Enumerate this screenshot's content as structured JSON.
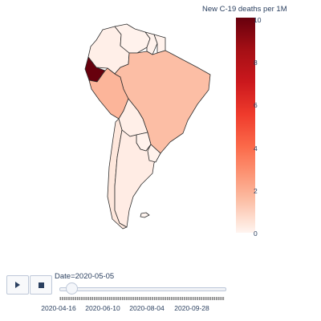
{
  "colorbar": {
    "title": "New C-19 deaths per 1M",
    "ticks": [
      "10",
      "8",
      "6",
      "4",
      "2",
      "0"
    ]
  },
  "map": {
    "countries": [
      {
        "name": "Colombia",
        "value": 0.2
      },
      {
        "name": "Venezuela",
        "value": 0.1
      },
      {
        "name": "Guyana",
        "value": 0.1
      },
      {
        "name": "Suriname",
        "value": 0.1
      },
      {
        "name": "Ecuador",
        "value": 10
      },
      {
        "name": "Peru",
        "value": 2.3
      },
      {
        "name": "Brazil",
        "value": 1.9
      },
      {
        "name": "Bolivia",
        "value": 0.2
      },
      {
        "name": "Paraguay",
        "value": 0.1
      },
      {
        "name": "Chile",
        "value": 0.5
      },
      {
        "name": "Argentina",
        "value": 0.3
      },
      {
        "name": "Uruguay",
        "value": 0.1
      }
    ]
  },
  "controls": {
    "play_icon": "play-icon",
    "stop_icon": "stop-icon",
    "slider_prefix": "Date=",
    "current_date": "2020-05-05",
    "slider_position": 0.07,
    "tick_labels": [
      "2020-04-16",
      "2020-06-10",
      "2020-08-04",
      "2020-09-28"
    ]
  }
}
